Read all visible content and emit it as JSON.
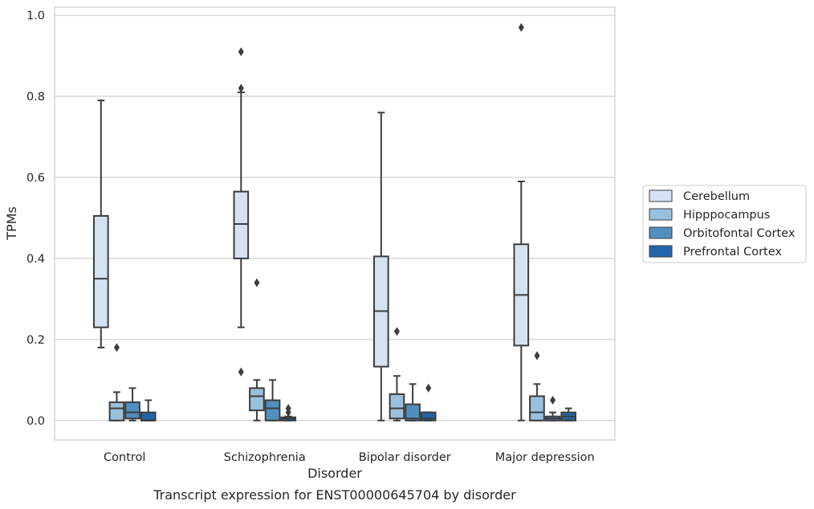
{
  "chart_data": {
    "type": "boxplot",
    "title": "",
    "caption": "Transcript expression for ENST00000645704 by disorder",
    "xlabel": "Disorder",
    "ylabel": "TPMs",
    "ylim": [
      -0.048,
      1.02
    ],
    "yticks": [
      "0.0",
      "0.2",
      "0.4",
      "0.6",
      "0.8",
      "1.0"
    ],
    "grid": "horizontal",
    "legend_position": "right",
    "categories": [
      "Control",
      "Schizophrenia",
      "Bipolar disorder",
      "Major depression"
    ],
    "series": [
      {
        "name": "Cerebellum",
        "color": "#d4e2f2",
        "boxes": [
          {
            "whislo": 0.18,
            "q1": 0.23,
            "med": 0.35,
            "q3": 0.505,
            "whishi": 0.79,
            "fliers": []
          },
          {
            "whislo": 0.23,
            "q1": 0.4,
            "med": 0.485,
            "q3": 0.565,
            "whishi": 0.81,
            "fliers": [
              0.82,
              0.91,
              0.12
            ]
          },
          {
            "whislo": 0.0,
            "q1": 0.133,
            "med": 0.27,
            "q3": 0.405,
            "whishi": 0.76,
            "fliers": []
          },
          {
            "whislo": 0.0,
            "q1": 0.185,
            "med": 0.31,
            "q3": 0.435,
            "whishi": 0.59,
            "fliers": [
              0.97
            ]
          }
        ]
      },
      {
        "name": "Hipppocampus",
        "color": "#99c1de",
        "boxes": [
          {
            "whislo": 0.0,
            "q1": 0.0,
            "med": 0.03,
            "q3": 0.045,
            "whishi": 0.07,
            "fliers": [
              0.18
            ]
          },
          {
            "whislo": 0.0,
            "q1": 0.025,
            "med": 0.06,
            "q3": 0.08,
            "whishi": 0.1,
            "fliers": [
              0.34
            ]
          },
          {
            "whislo": 0.0,
            "q1": 0.005,
            "med": 0.03,
            "q3": 0.065,
            "whishi": 0.11,
            "fliers": [
              0.22
            ]
          },
          {
            "whislo": 0.0,
            "q1": 0.0,
            "med": 0.02,
            "q3": 0.06,
            "whishi": 0.09,
            "fliers": [
              0.16
            ]
          }
        ]
      },
      {
        "name": "Orbitofontal Cortex",
        "color": "#4f90c0",
        "boxes": [
          {
            "whislo": 0.0,
            "q1": 0.005,
            "med": 0.02,
            "q3": 0.045,
            "whishi": 0.08,
            "fliers": []
          },
          {
            "whislo": 0.0,
            "q1": 0.0,
            "med": 0.03,
            "q3": 0.05,
            "whishi": 0.1,
            "fliers": []
          },
          {
            "whislo": 0.0,
            "q1": 0.0,
            "med": 0.005,
            "q3": 0.04,
            "whishi": 0.09,
            "fliers": []
          },
          {
            "whislo": 0.0,
            "q1": 0.0,
            "med": 0.005,
            "q3": 0.01,
            "whishi": 0.02,
            "fliers": [
              0.05
            ]
          }
        ]
      },
      {
        "name": "Prefrontal Cortex",
        "color": "#2166a8",
        "boxes": [
          {
            "whislo": 0.0,
            "q1": 0.0,
            "med": 0.0,
            "q3": 0.02,
            "whishi": 0.05,
            "fliers": []
          },
          {
            "whislo": 0.0,
            "q1": 0.0,
            "med": 0.005,
            "q3": 0.008,
            "whishi": 0.01,
            "fliers": [
              0.02,
              0.03
            ]
          },
          {
            "whislo": 0.0,
            "q1": 0.0,
            "med": 0.005,
            "q3": 0.02,
            "whishi": 0.02,
            "fliers": [
              0.08
            ]
          },
          {
            "whislo": 0.0,
            "q1": 0.0,
            "med": 0.01,
            "q3": 0.02,
            "whishi": 0.03,
            "fliers": []
          }
        ]
      }
    ]
  }
}
